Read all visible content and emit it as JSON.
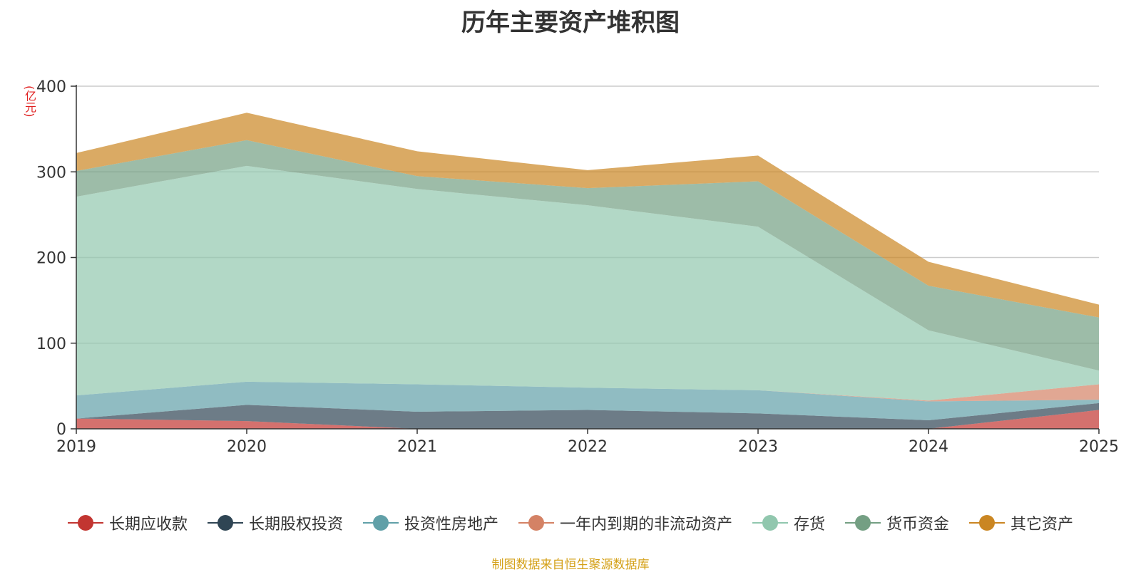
{
  "chart_data": {
    "type": "area",
    "stacked": true,
    "title": "历年主要资产堆积图",
    "unit": "(亿元)",
    "x": [
      "2019",
      "2020",
      "2021",
      "2022",
      "2023",
      "2024",
      "2025"
    ],
    "ylim": [
      0,
      400
    ],
    "yticks": [
      0,
      100,
      200,
      300,
      400
    ],
    "series": [
      {
        "name": "长期应收款",
        "color": "#c23531",
        "values": [
          12,
          9,
          0,
          0,
          0,
          0,
          22
        ]
      },
      {
        "name": "长期股权投资",
        "color": "#2f4554",
        "values": [
          0,
          19,
          20,
          22,
          18,
          10,
          8
        ]
      },
      {
        "name": "投资性房地产",
        "color": "#61a0a8",
        "values": [
          27,
          27,
          32,
          26,
          27,
          22,
          4
        ]
      },
      {
        "name": "一年内到期的非流动资产",
        "color": "#d48265",
        "values": [
          0,
          0,
          0,
          0,
          0,
          1,
          18
        ]
      },
      {
        "name": "存货",
        "color": "#91c7ae",
        "values": [
          232,
          252,
          228,
          213,
          191,
          82,
          16
        ]
      },
      {
        "name": "货币资金",
        "color": "#749f83",
        "values": [
          30,
          30,
          15,
          20,
          53,
          52,
          62
        ]
      },
      {
        "name": "其它资产",
        "color": "#ca8622",
        "values": [
          21,
          32,
          29,
          21,
          30,
          28,
          15
        ]
      }
    ],
    "legend_position": "bottom",
    "grid": true
  },
  "source_note": "制图数据来自恒生聚源数据库"
}
